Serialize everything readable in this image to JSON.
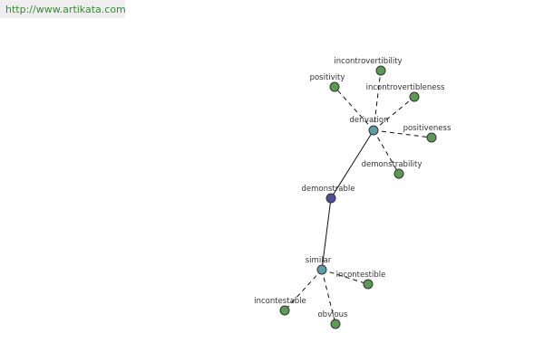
{
  "header": {
    "url": "http://www.artikata.com"
  },
  "nodes": [
    {
      "label": "demonstrable"
    },
    {
      "label": "derivation"
    },
    {
      "label": "similar"
    },
    {
      "label": "incontrovertibility"
    },
    {
      "label": "positivity"
    },
    {
      "label": "incontrovertibleness"
    },
    {
      "label": "positiveness"
    },
    {
      "label": "demonstrability"
    },
    {
      "label": "incontestible"
    },
    {
      "label": "incontestable"
    },
    {
      "label": "obvious"
    }
  ]
}
